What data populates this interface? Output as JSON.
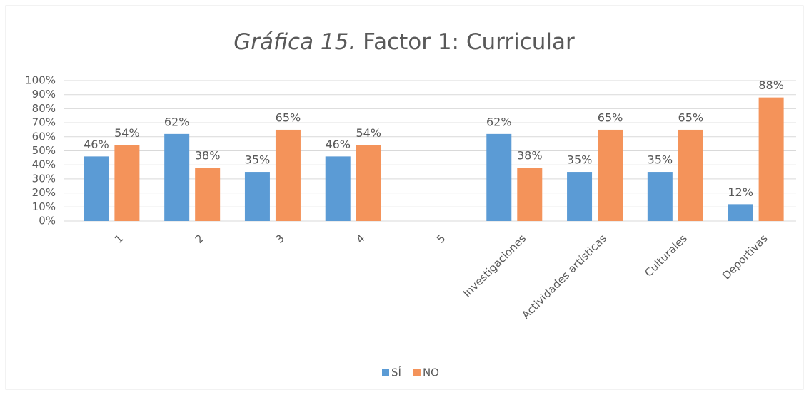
{
  "chart_data": {
    "type": "bar",
    "title": [
      "Gráfica 15.",
      "Factor 1: Curricular"
    ],
    "categories": [
      "1",
      "2",
      "3",
      "4",
      "5",
      "Investigaciones",
      "Actividades artísticas",
      "Culturales",
      "Deportivas"
    ],
    "series": [
      {
        "name": "SÍ",
        "color": "#5b9bd5",
        "values": [
          46,
          62,
          35,
          46,
          null,
          62,
          35,
          35,
          12
        ],
        "value_labels": [
          "46%",
          "62%",
          "35%",
          "46%",
          null,
          "62%",
          "35%",
          "35%",
          "12%"
        ]
      },
      {
        "name": "NO",
        "color": "#f4935a",
        "values": [
          54,
          38,
          65,
          54,
          null,
          38,
          65,
          65,
          88
        ],
        "value_labels": [
          "54%",
          "38%",
          "65%",
          "54%",
          null,
          "38%",
          "65%",
          "65%",
          "88%"
        ]
      }
    ],
    "ylim": [
      0,
      100
    ],
    "yticks": [
      {
        "value": 0,
        "label": "0%"
      },
      {
        "value": 10,
        "label": "10%"
      },
      {
        "value": 20,
        "label": "20%"
      },
      {
        "value": 30,
        "label": "30%"
      },
      {
        "value": 40,
        "label": "40%"
      },
      {
        "value": 50,
        "label": "50%"
      },
      {
        "value": 60,
        "label": "60%"
      },
      {
        "value": 70,
        "label": "70%"
      },
      {
        "value": 80,
        "label": "80%"
      },
      {
        "value": 90,
        "label": "90%"
      },
      {
        "value": 100,
        "label": "100%"
      }
    ],
    "grid": true,
    "legend": "bottom"
  }
}
